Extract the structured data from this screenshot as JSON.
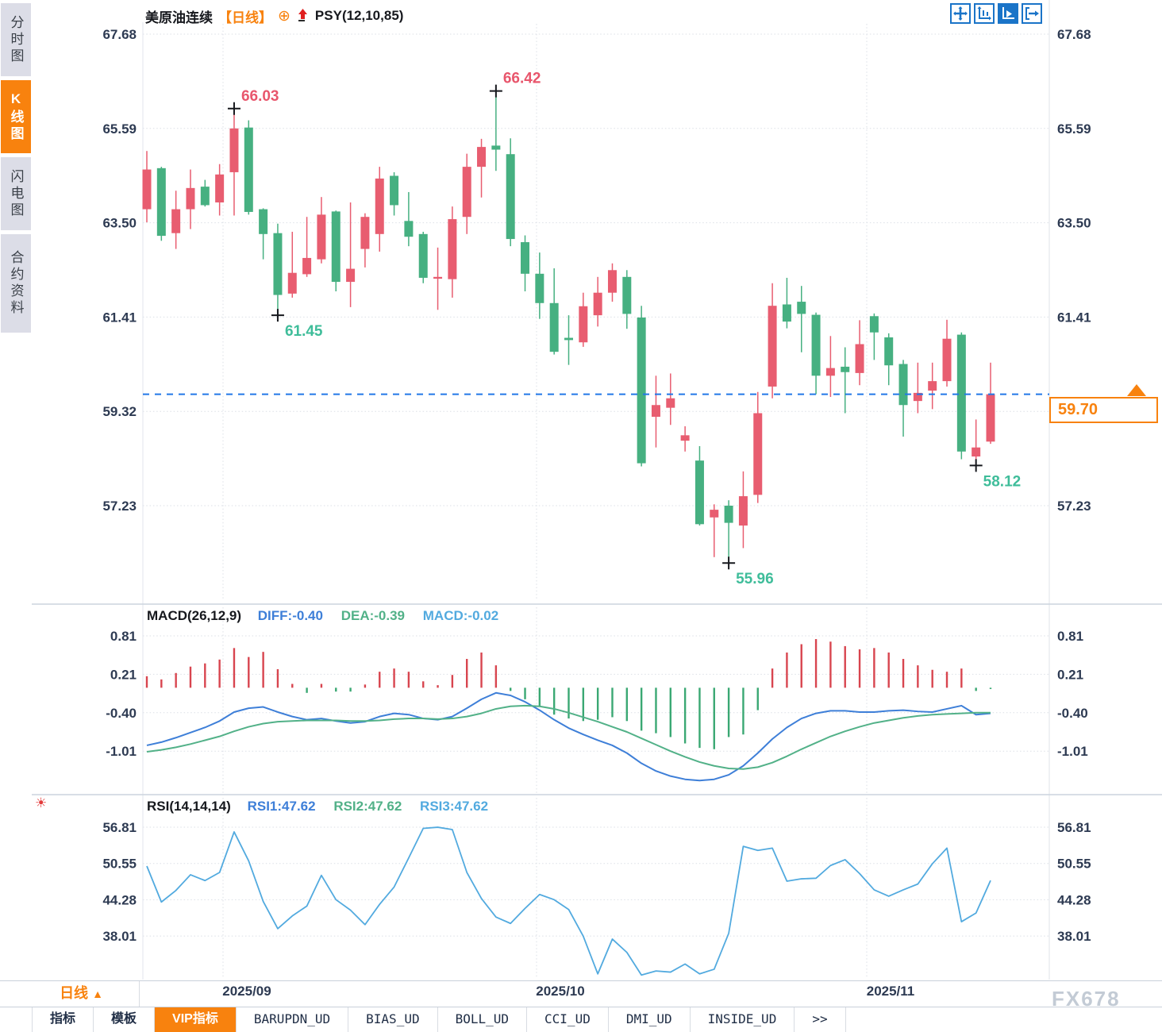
{
  "window": {
    "watermark": "FX678"
  },
  "sidebar": {
    "items": [
      {
        "label": "分时图",
        "active": false
      },
      {
        "label": "K线图",
        "active": true
      },
      {
        "label": "闪电图",
        "active": false
      },
      {
        "label": "合约资料",
        "active": false
      }
    ]
  },
  "titlebar": {
    "symbol": "美原油连续",
    "period_tag": "【日线】",
    "overlay_indicator": "PSY(12,10,85)",
    "icons": [
      "circle-plus-icon",
      "red-up-arrow-icon"
    ]
  },
  "toolbar": {
    "icons": [
      "crosshair-move-icon",
      "axis-range-icon",
      "axis-play-icon",
      "exit-chart-icon"
    ],
    "accent": "#1a74c8"
  },
  "price_box": {
    "value": "59.70",
    "color": "#f8820e"
  },
  "macd_header": {
    "name": "MACD(26,12,9)",
    "diff_label": "DIFF:-0.40",
    "dea_label": "DEA:-0.39",
    "macd_label": "MACD:-0.02"
  },
  "rsi_header": {
    "name": "RSI(14,14,14)",
    "rsi1_label": "RSI1:47.62",
    "rsi2_label": "RSI2:47.62",
    "rsi3_label": "RSI3:47.62"
  },
  "period_selector": {
    "label": "日线",
    "arrow": "▲"
  },
  "tabs": {
    "items": [
      {
        "label": "指标",
        "active": false
      },
      {
        "label": "模板",
        "active": false
      },
      {
        "label": "VIP指标",
        "active": true
      },
      {
        "label": "BARUPDN_UD",
        "active": false
      },
      {
        "label": "BIAS_UD",
        "active": false
      },
      {
        "label": "BOLL_UD",
        "active": false
      },
      {
        "label": "CCI_UD",
        "active": false
      },
      {
        "label": "DMI_UD",
        "active": false
      },
      {
        "label": "INSIDE_UD",
        "active": false
      },
      {
        "label": ">>",
        "active": false
      }
    ]
  },
  "colors": {
    "accent_orange": "#f8820e",
    "axis_text": "#2d3a52",
    "candle_up": "#e85d70",
    "candle_down": "#46b081",
    "macd_bar_up": "#d8454f",
    "macd_bar_down": "#3aa873",
    "diff_line": "#3e7fd8",
    "dea_line": "#52b188",
    "rsi_line": "#52aadf",
    "current_price_line": "#2277e8",
    "high_label": "#e8566c",
    "low_label": "#3fbd9a"
  },
  "chart_data": [
    {
      "type": "candlestick",
      "panel": "price",
      "title": "美原油连续【日线】",
      "yticks": [
        67.68,
        65.59,
        63.5,
        61.41,
        59.32,
        57.23
      ],
      "x_labels": [
        {
          "label": "2025/09"
        },
        {
          "label": "2025/10"
        },
        {
          "label": "2025/11"
        }
      ],
      "current_price": 59.7,
      "up_color": "#e85d70",
      "down_color": "#46b081",
      "candles": [
        [
          63.8,
          65.09,
          63.51,
          64.68
        ],
        [
          64.71,
          64.74,
          63.1,
          63.21
        ],
        [
          63.27,
          64.21,
          62.92,
          63.8
        ],
        [
          63.8,
          64.68,
          63.36,
          64.27
        ],
        [
          64.3,
          64.45,
          63.86,
          63.89
        ],
        [
          63.95,
          64.8,
          63.66,
          64.57
        ],
        [
          64.62,
          66.03,
          63.66,
          65.59
        ],
        [
          65.61,
          65.77,
          63.68,
          63.74
        ],
        [
          63.8,
          63.82,
          62.69,
          63.25
        ],
        [
          63.27,
          63.48,
          61.45,
          61.9
        ],
        [
          61.93,
          63.3,
          61.84,
          62.39
        ],
        [
          62.36,
          63.63,
          62.3,
          62.72
        ],
        [
          62.69,
          64.07,
          62.6,
          63.68
        ],
        [
          63.75,
          63.77,
          61.98,
          62.19
        ],
        [
          62.19,
          63.95,
          61.63,
          62.48
        ],
        [
          62.92,
          63.71,
          62.51,
          63.63
        ],
        [
          63.25,
          64.74,
          62.86,
          64.48
        ],
        [
          64.54,
          64.62,
          63.66,
          63.89
        ],
        [
          63.54,
          64.18,
          62.98,
          63.19
        ],
        [
          63.25,
          63.3,
          62.16,
          62.28
        ],
        [
          62.26,
          62.95,
          61.57,
          62.3
        ],
        [
          62.25,
          63.86,
          61.84,
          63.58
        ],
        [
          63.63,
          65.03,
          63.25,
          64.74
        ],
        [
          64.74,
          65.36,
          64.06,
          65.18
        ],
        [
          65.21,
          66.42,
          64.65,
          65.12
        ],
        [
          65.02,
          65.37,
          62.98,
          63.14
        ],
        [
          63.07,
          63.22,
          61.98,
          62.37
        ],
        [
          62.37,
          62.84,
          61.37,
          61.72
        ],
        [
          61.72,
          62.49,
          60.58,
          60.64
        ],
        [
          60.95,
          61.45,
          60.35,
          60.9
        ],
        [
          60.85,
          61.95,
          60.75,
          61.65
        ],
        [
          61.45,
          62.3,
          61.2,
          61.95
        ],
        [
          61.95,
          62.6,
          61.75,
          62.45
        ],
        [
          62.3,
          62.45,
          61.15,
          61.48
        ],
        [
          61.4,
          61.66,
          58.1,
          58.17
        ],
        [
          59.2,
          60.11,
          58.52,
          59.46
        ],
        [
          59.4,
          60.16,
          59.02,
          59.61
        ],
        [
          58.67,
          58.99,
          58.43,
          58.79
        ],
        [
          58.23,
          58.55,
          56.79,
          56.82
        ],
        [
          56.97,
          57.26,
          56.09,
          57.14
        ],
        [
          57.23,
          57.35,
          55.96,
          56.85
        ],
        [
          56.79,
          57.99,
          56.29,
          57.44
        ],
        [
          57.47,
          59.75,
          57.29,
          59.28
        ],
        [
          59.87,
          62.16,
          59.61,
          61.66
        ],
        [
          61.69,
          62.28,
          61.16,
          61.31
        ],
        [
          61.75,
          62.1,
          60.63,
          61.48
        ],
        [
          61.46,
          61.51,
          59.7,
          60.11
        ],
        [
          60.11,
          60.99,
          59.64,
          60.28
        ],
        [
          60.31,
          60.74,
          59.28,
          60.19
        ],
        [
          60.17,
          61.34,
          59.9,
          60.81
        ],
        [
          61.43,
          61.49,
          60.46,
          61.07
        ],
        [
          60.96,
          61.05,
          59.9,
          60.34
        ],
        [
          60.37,
          60.46,
          58.76,
          59.46
        ],
        [
          59.55,
          60.4,
          59.28,
          59.73
        ],
        [
          59.78,
          60.4,
          59.37,
          59.99
        ],
        [
          59.99,
          61.35,
          59.87,
          60.93
        ],
        [
          61.02,
          61.07,
          58.26,
          58.43
        ],
        [
          58.32,
          59.14,
          58.12,
          58.52
        ],
        [
          58.65,
          60.4,
          58.6,
          59.7
        ]
      ],
      "annotations": [
        {
          "index": 6,
          "pos": "high",
          "label": "66.03"
        },
        {
          "index": 9,
          "pos": "low",
          "label": "61.45"
        },
        {
          "index": 24,
          "pos": "high",
          "label": "66.42"
        },
        {
          "index": 40,
          "pos": "low",
          "label": "55.96"
        },
        {
          "index": 57,
          "pos": "low",
          "label": "58.12"
        }
      ]
    },
    {
      "type": "bar",
      "panel": "macd",
      "title": "MACD(26,12,9)",
      "yticks": [
        0.81,
        0.21,
        -0.4,
        -1.01
      ],
      "bar_up_color": "#d8454f",
      "bar_down_color": "#3aa873",
      "series": [
        {
          "name": "MACD",
          "type": "bar",
          "values": [
            0.18,
            0.13,
            0.23,
            0.33,
            0.38,
            0.44,
            0.62,
            0.48,
            0.56,
            0.29,
            0.06,
            -0.08,
            0.06,
            -0.06,
            -0.06,
            0.05,
            0.25,
            0.3,
            0.25,
            0.1,
            0.04,
            0.2,
            0.45,
            0.55,
            0.35,
            -0.05,
            -0.18,
            -0.3,
            -0.42,
            -0.48,
            -0.52,
            -0.5,
            -0.46,
            -0.52,
            -0.67,
            -0.71,
            -0.77,
            -0.87,
            -0.94,
            -0.96,
            -0.77,
            -0.73,
            -0.35,
            0.3,
            0.55,
            0.68,
            0.76,
            0.72,
            0.65,
            0.6,
            0.62,
            0.55,
            0.45,
            0.35,
            0.28,
            0.25,
            0.3,
            -0.05,
            -0.02
          ]
        },
        {
          "name": "DIFF",
          "type": "line",
          "color": "#3e7fd8",
          "values": [
            -0.9,
            -0.85,
            -0.78,
            -0.7,
            -0.62,
            -0.52,
            -0.38,
            -0.32,
            -0.3,
            -0.38,
            -0.45,
            -0.5,
            -0.48,
            -0.52,
            -0.55,
            -0.53,
            -0.45,
            -0.4,
            -0.42,
            -0.48,
            -0.5,
            -0.45,
            -0.32,
            -0.18,
            -0.08,
            -0.12,
            -0.22,
            -0.35,
            -0.5,
            -0.63,
            -0.73,
            -0.82,
            -0.9,
            -1.02,
            -1.18,
            -1.3,
            -1.38,
            -1.43,
            -1.45,
            -1.43,
            -1.36,
            -1.22,
            -1.02,
            -0.8,
            -0.62,
            -0.48,
            -0.4,
            -0.36,
            -0.36,
            -0.38,
            -0.38,
            -0.36,
            -0.35,
            -0.37,
            -0.38,
            -0.33,
            -0.28,
            -0.42,
            -0.4
          ]
        },
        {
          "name": "DEA",
          "type": "line",
          "color": "#52b188",
          "values": [
            -1.0,
            -0.97,
            -0.93,
            -0.88,
            -0.82,
            -0.76,
            -0.68,
            -0.61,
            -0.56,
            -0.53,
            -0.52,
            -0.51,
            -0.51,
            -0.51,
            -0.52,
            -0.52,
            -0.51,
            -0.49,
            -0.48,
            -0.48,
            -0.49,
            -0.48,
            -0.45,
            -0.4,
            -0.33,
            -0.29,
            -0.28,
            -0.29,
            -0.33,
            -0.39,
            -0.46,
            -0.53,
            -0.61,
            -0.69,
            -0.79,
            -0.89,
            -0.99,
            -1.08,
            -1.16,
            -1.22,
            -1.26,
            -1.27,
            -1.24,
            -1.17,
            -1.07,
            -0.96,
            -0.86,
            -0.76,
            -0.68,
            -0.61,
            -0.55,
            -0.51,
            -0.47,
            -0.44,
            -0.42,
            -0.41,
            -0.4,
            -0.39,
            -0.39
          ]
        }
      ]
    },
    {
      "type": "line",
      "panel": "rsi",
      "title": "RSI(14,14,14)",
      "yticks": [
        56.81,
        50.55,
        44.28,
        38.01
      ],
      "series": [
        {
          "name": "RSI1",
          "color": "#52aadf",
          "values": [
            50.1,
            43.9,
            45.9,
            48.6,
            47.6,
            49.0,
            56.0,
            51.0,
            44.0,
            39.3,
            41.5,
            43.2,
            48.5,
            44.3,
            42.5,
            40.0,
            43.5,
            46.5,
            51.5,
            56.6,
            56.8,
            56.4,
            49.0,
            44.5,
            41.3,
            40.2,
            42.8,
            45.2,
            44.3,
            42.6,
            38.0,
            31.5,
            37.5,
            35.2,
            31.3,
            32.0,
            31.8,
            33.2,
            31.5,
            32.3,
            38.5,
            53.5,
            52.8,
            53.2,
            47.5,
            47.9,
            48.0,
            50.2,
            51.2,
            48.8,
            46.0,
            44.9,
            46.0,
            47.0,
            50.5,
            53.2,
            40.5,
            42.0,
            47.62
          ]
        }
      ]
    }
  ]
}
